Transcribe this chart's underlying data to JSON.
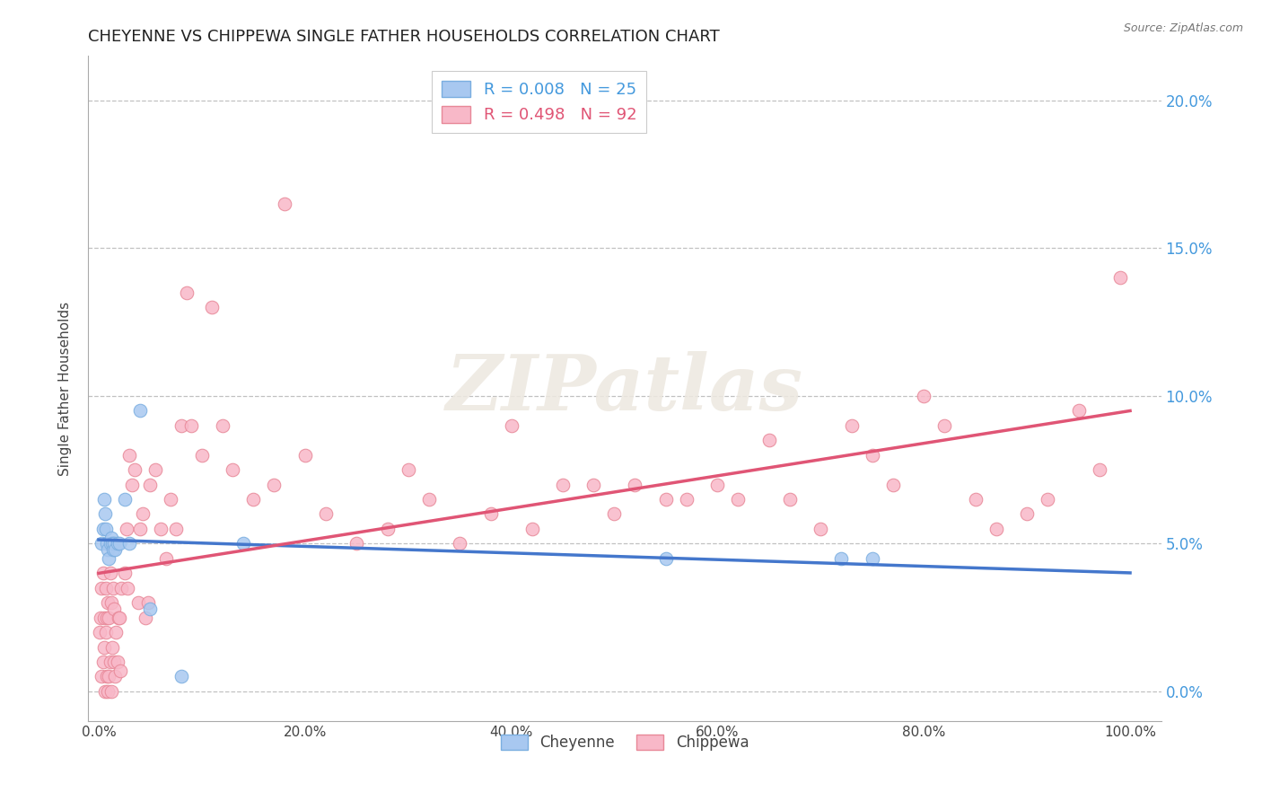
{
  "title": "CHEYENNE VS CHIPPEWA SINGLE FATHER HOUSEHOLDS CORRELATION CHART",
  "source": "Source: ZipAtlas.com",
  "ylabel": "Single Father Households",
  "xlim": [
    0.0,
    1.0
  ],
  "ylim": [
    -0.01,
    0.215
  ],
  "xticks": [
    0.0,
    0.2,
    0.4,
    0.6,
    0.8,
    1.0
  ],
  "xtick_labels": [
    "0.0%",
    "20.0%",
    "40.0%",
    "60.0%",
    "80.0%",
    "100.0%"
  ],
  "yticks": [
    0.0,
    0.05,
    0.1,
    0.15,
    0.2
  ],
  "ytick_labels": [
    "0.0%",
    "5.0%",
    "10.0%",
    "15.0%",
    "20.0%"
  ],
  "cheyenne": {
    "R": 0.008,
    "N": 25,
    "color": "#a8c8f0",
    "edgecolor": "#7aaee0",
    "x": [
      0.003,
      0.004,
      0.005,
      0.006,
      0.007,
      0.008,
      0.009,
      0.01,
      0.011,
      0.012,
      0.013,
      0.014,
      0.015,
      0.016,
      0.018,
      0.02,
      0.025,
      0.03,
      0.04,
      0.05,
      0.08,
      0.14,
      0.55,
      0.72,
      0.75
    ],
    "y": [
      0.05,
      0.055,
      0.065,
      0.06,
      0.055,
      0.05,
      0.048,
      0.045,
      0.05,
      0.052,
      0.05,
      0.048,
      0.05,
      0.048,
      0.05,
      0.05,
      0.065,
      0.05,
      0.095,
      0.028,
      0.005,
      0.05,
      0.045,
      0.045,
      0.045
    ]
  },
  "chippewa": {
    "R": 0.498,
    "N": 92,
    "color": "#f8b8c8",
    "edgecolor": "#e88898",
    "x": [
      0.001,
      0.002,
      0.003,
      0.003,
      0.004,
      0.004,
      0.005,
      0.005,
      0.006,
      0.007,
      0.007,
      0.008,
      0.008,
      0.009,
      0.009,
      0.01,
      0.01,
      0.011,
      0.011,
      0.012,
      0.012,
      0.013,
      0.014,
      0.015,
      0.015,
      0.016,
      0.017,
      0.018,
      0.019,
      0.02,
      0.021,
      0.022,
      0.025,
      0.027,
      0.028,
      0.03,
      0.032,
      0.035,
      0.038,
      0.04,
      0.043,
      0.045,
      0.048,
      0.05,
      0.055,
      0.06,
      0.065,
      0.07,
      0.075,
      0.08,
      0.085,
      0.09,
      0.1,
      0.11,
      0.12,
      0.13,
      0.15,
      0.17,
      0.18,
      0.2,
      0.22,
      0.25,
      0.28,
      0.3,
      0.32,
      0.35,
      0.38,
      0.4,
      0.42,
      0.45,
      0.48,
      0.5,
      0.52,
      0.55,
      0.57,
      0.6,
      0.62,
      0.65,
      0.67,
      0.7,
      0.73,
      0.75,
      0.77,
      0.8,
      0.82,
      0.85,
      0.87,
      0.9,
      0.92,
      0.95,
      0.97,
      0.99
    ],
    "y": [
      0.02,
      0.025,
      0.005,
      0.035,
      0.01,
      0.04,
      0.015,
      0.025,
      0.0,
      0.02,
      0.035,
      0.005,
      0.025,
      0.0,
      0.03,
      0.005,
      0.025,
      0.01,
      0.04,
      0.0,
      0.03,
      0.015,
      0.035,
      0.01,
      0.028,
      0.005,
      0.02,
      0.01,
      0.025,
      0.025,
      0.007,
      0.035,
      0.04,
      0.055,
      0.035,
      0.08,
      0.07,
      0.075,
      0.03,
      0.055,
      0.06,
      0.025,
      0.03,
      0.07,
      0.075,
      0.055,
      0.045,
      0.065,
      0.055,
      0.09,
      0.135,
      0.09,
      0.08,
      0.13,
      0.09,
      0.075,
      0.065,
      0.07,
      0.165,
      0.08,
      0.06,
      0.05,
      0.055,
      0.075,
      0.065,
      0.05,
      0.06,
      0.09,
      0.055,
      0.07,
      0.07,
      0.06,
      0.07,
      0.065,
      0.065,
      0.07,
      0.065,
      0.085,
      0.065,
      0.055,
      0.09,
      0.08,
      0.07,
      0.1,
      0.09,
      0.065,
      0.055,
      0.06,
      0.065,
      0.095,
      0.075,
      0.14
    ]
  },
  "watermark": "ZIPatlas",
  "title_fontsize": 13,
  "label_fontsize": 11,
  "tick_fontsize": 11,
  "legend_fontsize": 13
}
